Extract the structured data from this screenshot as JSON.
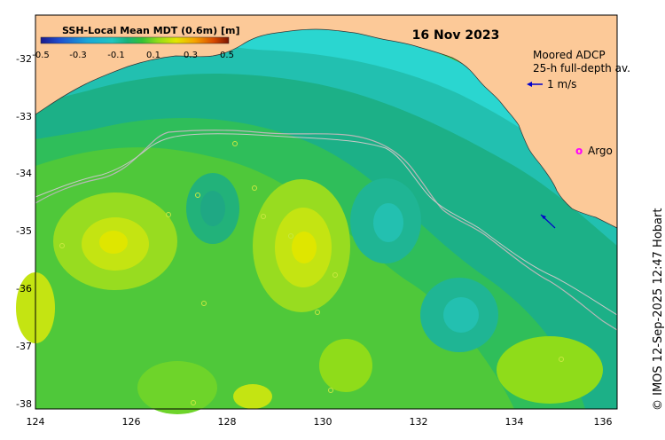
{
  "map": {
    "date": "16 Nov 2023",
    "colorbar": {
      "title": "SSH-Local Mean MDT (0.6m) [m]",
      "ticks": [
        "-0.5",
        "-0.3",
        "-0.1",
        "0.1",
        "0.3",
        "0.5"
      ],
      "range": [
        -0.5,
        0.5
      ],
      "colors": [
        "#1a1a8c",
        "#1f4fd0",
        "#19a8d8",
        "#1fc6c0",
        "#17b37a",
        "#35c235",
        "#8fdc1a",
        "#e2e600",
        "#f6a200",
        "#d84a00",
        "#7a1400"
      ]
    },
    "legend": {
      "adcp_title": "Moored ADCP",
      "adcp_subtitle": "25-h full-depth av.",
      "scale_label": "1 m/s",
      "argo_marker": "o",
      "argo_label": "Argo",
      "argo_color": "#ff00ff",
      "vector_color": "#0000cc"
    },
    "lat_ticks": [
      "-32",
      "-33",
      "-34",
      "-35",
      "-36",
      "-37",
      "-38"
    ],
    "lon_ticks": [
      "124",
      "126",
      "128",
      "130",
      "132",
      "134",
      "136"
    ],
    "credit": "© IMOS 12-Sep-2025 12:47 Hobart",
    "colors": {
      "land": "#fcc998",
      "ocean_base": "#4fc83a",
      "shelf_cyan": "#2ad0c8",
      "teal": "#19b392",
      "contour": "#b8b8b8"
    }
  }
}
